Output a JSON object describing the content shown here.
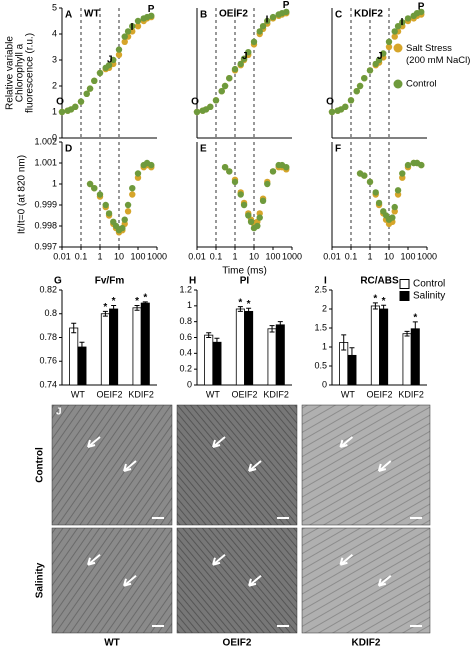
{
  "chart_data": [
    {
      "type": "scatter",
      "panel": "A",
      "title": "WT",
      "ylabel": [
        "Relative variable",
        "Chlorophyll a",
        "fluorescence (r.u.)"
      ],
      "x": [
        0.01,
        0.02,
        0.03,
        0.05,
        0.1,
        0.2,
        0.3,
        0.5,
        1,
        2,
        3,
        5,
        10,
        20,
        30,
        50,
        100,
        200,
        300,
        500
      ],
      "xscale": "log",
      "xlim": [
        0.01,
        1000
      ],
      "ylim": [
        0,
        5
      ],
      "yticks": [
        0,
        1,
        2,
        3,
        4,
        5
      ],
      "vlines": [
        0.1,
        1,
        10
      ],
      "phase_labels": [
        "O",
        "J",
        "I",
        "P"
      ],
      "series": [
        {
          "color": "#d6a52a",
          "values": [
            1.0,
            1.05,
            1.1,
            1.2,
            1.4,
            1.7,
            1.9,
            2.2,
            2.5,
            2.65,
            2.7,
            2.85,
            3.2,
            3.7,
            3.9,
            4.1,
            4.3,
            4.5,
            4.6,
            4.65
          ]
        },
        {
          "color": "#6e9a3c",
          "values": [
            1.0,
            1.05,
            1.1,
            1.2,
            1.4,
            1.7,
            1.9,
            2.2,
            2.5,
            2.7,
            2.8,
            3.0,
            3.4,
            3.9,
            4.1,
            4.3,
            4.5,
            4.6,
            4.65,
            4.7
          ]
        }
      ]
    },
    {
      "type": "scatter",
      "panel": "B",
      "title": "OEIF2",
      "x": [
        0.01,
        0.02,
        0.03,
        0.05,
        0.1,
        0.2,
        0.3,
        0.5,
        1,
        2,
        3,
        5,
        10,
        20,
        30,
        50,
        100,
        200,
        300,
        500
      ],
      "xscale": "log",
      "xlim": [
        0.01,
        1000
      ],
      "ylim": [
        0,
        5
      ],
      "vlines": [
        0.1,
        1,
        10
      ],
      "phase_labels": [
        "O",
        "J",
        "I",
        "P"
      ],
      "series": [
        {
          "color": "#d6a52a",
          "values": [
            1.0,
            1.05,
            1.1,
            1.2,
            1.45,
            1.8,
            2.0,
            2.3,
            2.6,
            2.8,
            3.0,
            3.2,
            3.6,
            4.0,
            4.2,
            4.4,
            4.6,
            4.7,
            4.75,
            4.8
          ]
        },
        {
          "color": "#6e9a3c",
          "values": [
            1.0,
            1.05,
            1.1,
            1.2,
            1.45,
            1.8,
            2.0,
            2.3,
            2.65,
            2.85,
            3.05,
            3.3,
            3.7,
            4.1,
            4.3,
            4.5,
            4.65,
            4.75,
            4.8,
            4.85
          ]
        }
      ]
    },
    {
      "type": "scatter",
      "panel": "C",
      "title": "KDIF2",
      "legend": "right",
      "x": [
        0.01,
        0.02,
        0.03,
        0.05,
        0.1,
        0.2,
        0.3,
        0.5,
        1,
        2,
        3,
        5,
        10,
        20,
        30,
        50,
        100,
        200,
        300,
        500
      ],
      "xscale": "log",
      "xlim": [
        0.01,
        1000
      ],
      "ylim": [
        0,
        5
      ],
      "vlines": [
        0.1,
        1,
        10
      ],
      "phase_labels": [
        "O",
        "J",
        "I",
        "P"
      ],
      "series": [
        {
          "name": "Salt Stress (200 mM NaCl)",
          "color": "#d6a52a",
          "values": [
            1.0,
            1.05,
            1.1,
            1.2,
            1.45,
            1.8,
            2.0,
            2.3,
            2.6,
            2.8,
            2.9,
            3.1,
            3.5,
            3.9,
            4.1,
            4.3,
            4.5,
            4.6,
            4.7,
            4.75
          ]
        },
        {
          "name": "Control",
          "color": "#6e9a3c",
          "values": [
            1.0,
            1.05,
            1.1,
            1.2,
            1.45,
            1.8,
            2.0,
            2.3,
            2.6,
            2.85,
            3.0,
            3.25,
            3.7,
            4.1,
            4.3,
            4.45,
            4.6,
            4.7,
            4.8,
            4.85
          ]
        }
      ]
    },
    {
      "type": "scatter",
      "panel": "D",
      "ylabel": [
        "It/It=0 (at 820 nm)"
      ],
      "x": [
        0.3,
        0.5,
        1,
        2,
        3,
        5,
        7,
        10,
        15,
        20,
        30,
        50,
        100,
        200,
        300,
        500
      ],
      "xscale": "log",
      "xlim": [
        0.01,
        1000
      ],
      "xticks": [
        0.01,
        0.1,
        1,
        10,
        100,
        1000
      ],
      "ylim": [
        0.997,
        1.002
      ],
      "yticks": [
        0.997,
        0.998,
        0.999,
        1,
        1.001,
        1.002
      ],
      "vlines": [
        0.1,
        1,
        10
      ],
      "series": [
        {
          "color": "#d6a52a",
          "values": [
            1.0,
            0.9998,
            0.9994,
            0.9989,
            0.9985,
            0.9981,
            0.9979,
            0.9977,
            0.9978,
            0.9981,
            0.9987,
            0.9995,
            1.0003,
            1.0008,
            1.0009,
            1.0008
          ]
        },
        {
          "color": "#6e9a3c",
          "values": [
            1.0,
            0.9998,
            0.9995,
            0.999,
            0.9986,
            0.9982,
            0.998,
            0.9978,
            0.9979,
            0.9983,
            0.999,
            0.9998,
            1.0005,
            1.0009,
            1.001,
            1.0009
          ]
        }
      ]
    },
    {
      "type": "scatter",
      "panel": "E",
      "xlabel": "Time (ms)",
      "x": [
        0.3,
        0.5,
        1,
        2,
        3,
        5,
        7,
        10,
        15,
        20,
        30,
        50,
        100,
        200,
        300,
        500
      ],
      "xscale": "log",
      "xlim": [
        0.01,
        1000
      ],
      "xticks": [
        0.01,
        0.1,
        1,
        10,
        100,
        1000
      ],
      "ylim": [
        0.997,
        1.002
      ],
      "vlines": [
        0.1,
        1,
        10
      ],
      "series": [
        {
          "color": "#d6a52a",
          "values": [
            1.0008,
            1.0006,
            1.0002,
            0.9996,
            0.9991,
            0.9986,
            0.9983,
            0.9981,
            0.9982,
            0.9986,
            0.9993,
            1.0001,
            1.0006,
            1.0008,
            1.0008,
            1.0007
          ]
        },
        {
          "color": "#6e9a3c",
          "values": [
            1.0008,
            1.0006,
            1.0001,
            0.9995,
            0.999,
            0.9985,
            0.9982,
            0.9979,
            0.998,
            0.9984,
            0.9992,
            1.0,
            1.0006,
            1.0009,
            1.0009,
            1.0008
          ]
        }
      ]
    },
    {
      "type": "scatter",
      "panel": "F",
      "x": [
        0.3,
        0.5,
        1,
        2,
        3,
        5,
        7,
        10,
        15,
        20,
        30,
        50,
        100,
        200,
        300,
        500
      ],
      "xscale": "log",
      "xlim": [
        0.01,
        1000
      ],
      "xticks": [
        0.01,
        0.1,
        1,
        10,
        100,
        1000
      ],
      "ylim": [
        0.997,
        1.002
      ],
      "vlines": [
        0.1,
        1,
        10
      ],
      "series": [
        {
          "color": "#d6a52a",
          "values": [
            1.0005,
            1.0004,
            1.0001,
            0.9995,
            0.999,
            0.9986,
            0.9983,
            0.9981,
            0.9982,
            0.9987,
            0.9995,
            1.0003,
            1.0008,
            1.001,
            1.001,
            1.0009
          ]
        },
        {
          "color": "#6e9a3c",
          "values": [
            1.0005,
            1.0004,
            1.0001,
            0.9996,
            0.9991,
            0.9987,
            0.9985,
            0.9983,
            0.9984,
            0.9989,
            0.9997,
            1.0005,
            1.0009,
            1.001,
            1.001,
            1.0009
          ]
        }
      ]
    },
    {
      "type": "bar",
      "panel": "G",
      "title": "Fv/Fm",
      "categories": [
        "WT",
        "OEIF2",
        "KDIF2"
      ],
      "ylim": [
        0.74,
        0.82
      ],
      "yticks": [
        0.74,
        0.76,
        0.78,
        0.8,
        0.82
      ],
      "series": [
        {
          "color": "#ffffff",
          "values": [
            0.788,
            0.8,
            0.805
          ],
          "errors": [
            0.004,
            0.002,
            0.002
          ],
          "stars": [
            null,
            "*",
            "*"
          ]
        },
        {
          "color": "#000000",
          "values": [
            0.772,
            0.804,
            0.809
          ],
          "errors": [
            0.004,
            0.003,
            0.001
          ],
          "stars": [
            null,
            "*",
            "*"
          ]
        }
      ]
    },
    {
      "type": "bar",
      "panel": "H",
      "title": "PI",
      "categories": [
        "WT",
        "OEIF2",
        "KDIF2"
      ],
      "ylim": [
        0,
        1.2
      ],
      "yticks": [
        0,
        0.2,
        0.4,
        0.6,
        0.8,
        1,
        1.2
      ],
      "series": [
        {
          "color": "#ffffff",
          "values": [
            0.63,
            0.96,
            0.71
          ],
          "errors": [
            0.03,
            0.03,
            0.04
          ],
          "stars": [
            null,
            "*",
            null
          ]
        },
        {
          "color": "#000000",
          "values": [
            0.54,
            0.93,
            0.76
          ],
          "errors": [
            0.05,
            0.04,
            0.04
          ],
          "stars": [
            null,
            "*",
            null
          ]
        }
      ]
    },
    {
      "type": "bar",
      "panel": "I",
      "title": "RC/ABS",
      "legend": "upper right",
      "categories": [
        "WT",
        "OEIF2",
        "KDIF2"
      ],
      "ylim": [
        0,
        2.5
      ],
      "yticks": [
        0,
        0.5,
        1,
        1.5,
        2,
        2.5
      ],
      "series": [
        {
          "name": "Control",
          "color": "#ffffff",
          "values": [
            1.12,
            2.08,
            1.35
          ],
          "errors": [
            0.2,
            0.08,
            0.06
          ],
          "stars": [
            null,
            "*",
            null
          ]
        },
        {
          "name": "Salinity",
          "color": "#000000",
          "values": [
            0.78,
            2.0,
            1.48
          ],
          "errors": [
            0.2,
            0.1,
            0.18
          ],
          "stars": [
            null,
            "*",
            "*"
          ]
        }
      ]
    }
  ],
  "micrographs": {
    "panel": "J",
    "rows": [
      "Control",
      "Salinity"
    ],
    "columns": [
      "WT",
      "OEIF2",
      "KDIF2"
    ]
  }
}
